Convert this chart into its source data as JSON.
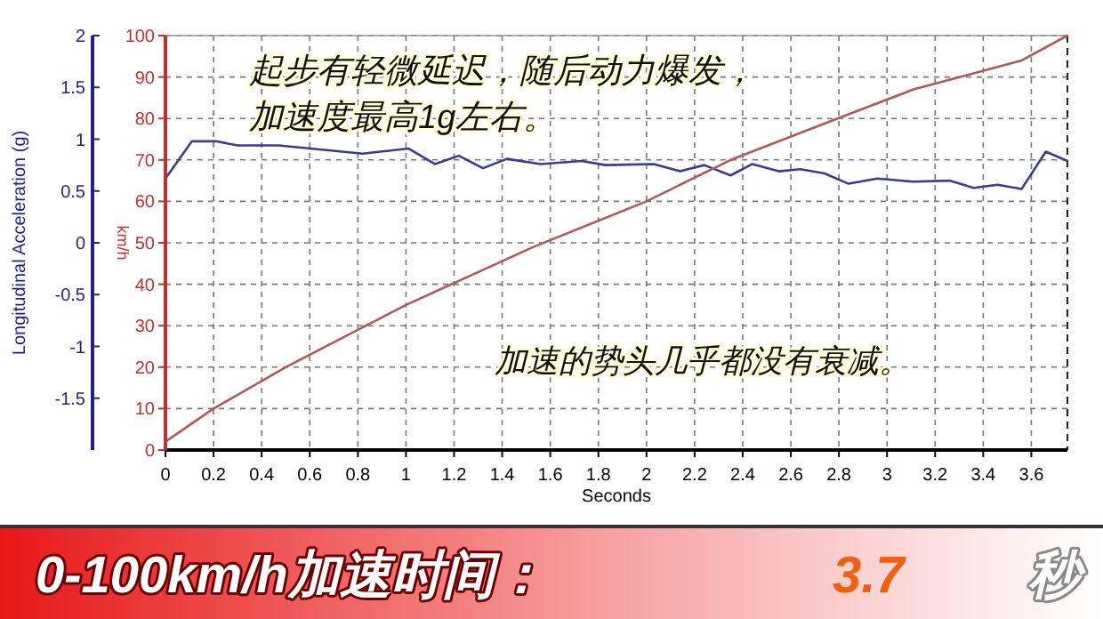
{
  "chart_data": {
    "type": "line",
    "xlabel": "Seconds",
    "ylabel": "Longitudinal Acceleration (g)",
    "y2label": "km/h",
    "xlim": [
      0,
      3.75
    ],
    "xticks": [
      0,
      0.2,
      0.4,
      0.6,
      0.8,
      1,
      1.2,
      1.4,
      1.6,
      1.8,
      2,
      2.2,
      2.4,
      2.6,
      2.8,
      3,
      3.2,
      3.4,
      3.6
    ],
    "ylim": [
      -2,
      2
    ],
    "yticks": [
      -1.5,
      -1,
      -0.5,
      0,
      0.5,
      1,
      1.5,
      2
    ],
    "y2lim": [
      0,
      100
    ],
    "y2ticks": [
      0,
      10,
      20,
      30,
      40,
      50,
      60,
      70,
      80,
      90,
      100
    ],
    "grid": true,
    "line_style": "solid",
    "series": [
      {
        "color": "#3b3b8f",
        "x": [
          0,
          0.11,
          0.21,
          0.3,
          0.47,
          0.82,
          1.01,
          1.12,
          1.22,
          1.32,
          1.42,
          1.56,
          1.73,
          1.83,
          2.03,
          2.14,
          2.24,
          2.35,
          2.44,
          2.55,
          2.64,
          2.74,
          2.84,
          2.96,
          3.11,
          3.26,
          3.36,
          3.46,
          3.56,
          3.66,
          3.75
        ],
        "values": [
          0.62,
          0.98,
          0.98,
          0.94,
          0.94,
          0.86,
          0.91,
          0.76,
          0.84,
          0.72,
          0.81,
          0.76,
          0.79,
          0.75,
          0.76,
          0.69,
          0.75,
          0.65,
          0.76,
          0.69,
          0.71,
          0.67,
          0.57,
          0.62,
          0.59,
          0.6,
          0.53,
          0.56,
          0.52,
          0.88,
          0.79
        ]
      },
      {
        "color": "#b05a5a",
        "axis": "y2",
        "x": [
          0,
          0.2,
          0.5,
          1.0,
          1.53,
          2.0,
          2.35,
          2.84,
          3.11,
          3.56,
          3.75
        ],
        "values": [
          2,
          10,
          20,
          35,
          49,
          60,
          70,
          81,
          87,
          94,
          100
        ]
      }
    ],
    "annotations": [
      "起步有轻微延迟，随后动力爆发，",
      "加速度最高1g左右。",
      "加速的势头几乎都没有衰减。",
      "0-100km/h加速时间：",
      "3.7",
      "秒"
    ]
  }
}
